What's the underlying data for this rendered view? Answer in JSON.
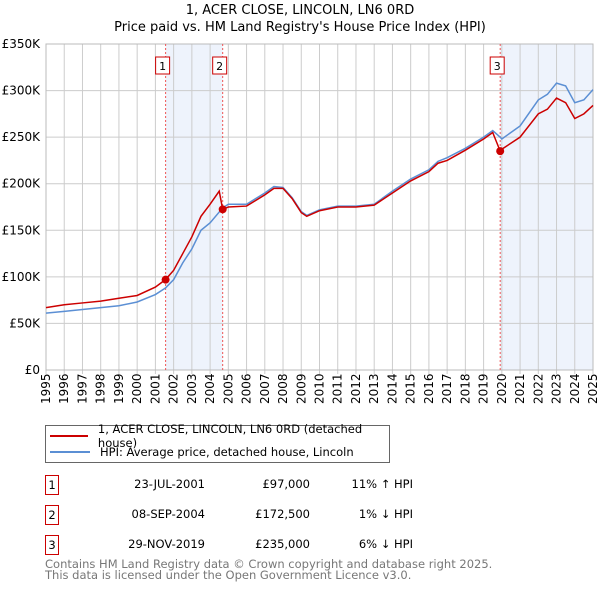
{
  "title": "1, ACER CLOSE, LINCOLN, LN6 0RD",
  "subtitle": "Price paid vs. HM Land Registry's House Price Index (HPI)",
  "chart_data": {
    "type": "line",
    "ylim": [
      0,
      350000
    ],
    "xlim": [
      1995,
      2025
    ],
    "yticks": [
      {
        "v": 0,
        "label": "£0"
      },
      {
        "v": 50000,
        "label": "£50K"
      },
      {
        "v": 100000,
        "label": "£100K"
      },
      {
        "v": 150000,
        "label": "£150K"
      },
      {
        "v": 200000,
        "label": "£200K"
      },
      {
        "v": 250000,
        "label": "£250K"
      },
      {
        "v": 300000,
        "label": "£300K"
      },
      {
        "v": 350000,
        "label": "£350K"
      }
    ],
    "xticks": [
      "1995",
      "1996",
      "1997",
      "1998",
      "1999",
      "2000",
      "2001",
      "2002",
      "2003",
      "2004",
      "2005",
      "2006",
      "2007",
      "2008",
      "2009",
      "2010",
      "2011",
      "2012",
      "2013",
      "2014",
      "2015",
      "2016",
      "2017",
      "2018",
      "2019",
      "2020",
      "2021",
      "2022",
      "2023",
      "2024",
      "2025"
    ],
    "grid": true,
    "series": [
      {
        "name": "1, ACER CLOSE, LINCOLN, LN6 0RD (detached house)",
        "color": "#cc0000",
        "x": [
          1995,
          1996,
          1997,
          1998,
          1999,
          2000,
          2001,
          2001.55,
          2002,
          2002.5,
          2003,
          2003.5,
          2004,
          2004.5,
          2004.69,
          2005,
          2006,
          2007,
          2007.5,
          2008,
          2008.5,
          2009,
          2009.3,
          2010,
          2011,
          2012,
          2013,
          2014,
          2015,
          2016,
          2016.5,
          2017,
          2018,
          2019,
          2019.5,
          2019.91,
          2020,
          2021,
          2022,
          2022.5,
          2023,
          2023.5,
          2024,
          2024.5,
          2025
        ],
        "y": [
          67000,
          70000,
          72000,
          74000,
          77000,
          80000,
          89000,
          97000,
          107000,
          125000,
          143000,
          165000,
          178000,
          192000,
          172500,
          175000,
          176000,
          188000,
          195000,
          195000,
          184000,
          169000,
          165000,
          171000,
          175000,
          175000,
          177000,
          190000,
          203000,
          213000,
          222000,
          225000,
          236000,
          248000,
          255000,
          235000,
          237000,
          250000,
          275000,
          280000,
          292000,
          287000,
          270000,
          275000,
          284000
        ]
      },
      {
        "name": "HPI: Average price, detached house, Lincoln",
        "color": "#5b8fd4",
        "x": [
          1995,
          1996,
          1997,
          1998,
          1999,
          2000,
          2001,
          2001.55,
          2002,
          2002.5,
          2003,
          2003.5,
          2004,
          2004.69,
          2005,
          2006,
          2007,
          2007.5,
          2008,
          2008.5,
          2009,
          2009.3,
          2010,
          2011,
          2012,
          2013,
          2014,
          2015,
          2016,
          2016.5,
          2017,
          2018,
          2019,
          2019.5,
          2019.91,
          2020,
          2021,
          2022,
          2022.5,
          2023,
          2023.5,
          2024,
          2024.5,
          2025
        ],
        "y": [
          61000,
          63000,
          65000,
          67000,
          69000,
          73000,
          81000,
          88000,
          97000,
          115000,
          130000,
          150000,
          158000,
          174000,
          178000,
          178000,
          190000,
          197000,
          196000,
          185000,
          170000,
          166000,
          172000,
          176000,
          176000,
          178000,
          192000,
          205000,
          215000,
          224000,
          228000,
          238000,
          250000,
          257000,
          250000,
          248000,
          262000,
          290000,
          296000,
          308000,
          305000,
          287000,
          290000,
          301000
        ]
      }
    ],
    "sales": [
      {
        "label": "1",
        "x": 2001.56,
        "price": 97000
      },
      {
        "label": "2",
        "x": 2004.69,
        "price": 172500
      },
      {
        "label": "3",
        "x": 2019.91,
        "price": 235000
      }
    ],
    "shaded": [
      [
        2001.56,
        2004.69
      ],
      [
        2019.91,
        2025
      ]
    ]
  },
  "legend": [
    "1, ACER CLOSE, LINCOLN, LN6 0RD (detached house)",
    "HPI: Average price, detached house, Lincoln"
  ],
  "transactions": [
    {
      "num": "1",
      "date": "23-JUL-2001",
      "price": "£97,000",
      "hpi": "11% ↑ HPI"
    },
    {
      "num": "2",
      "date": "08-SEP-2004",
      "price": "£172,500",
      "hpi": "1% ↓ HPI"
    },
    {
      "num": "3",
      "date": "29-NOV-2019",
      "price": "£235,000",
      "hpi": "6% ↓ HPI"
    }
  ],
  "footer": [
    "Contains HM Land Registry data © Crown copyright and database right 2025.",
    "This data is licensed under the Open Government Licence v3.0."
  ]
}
